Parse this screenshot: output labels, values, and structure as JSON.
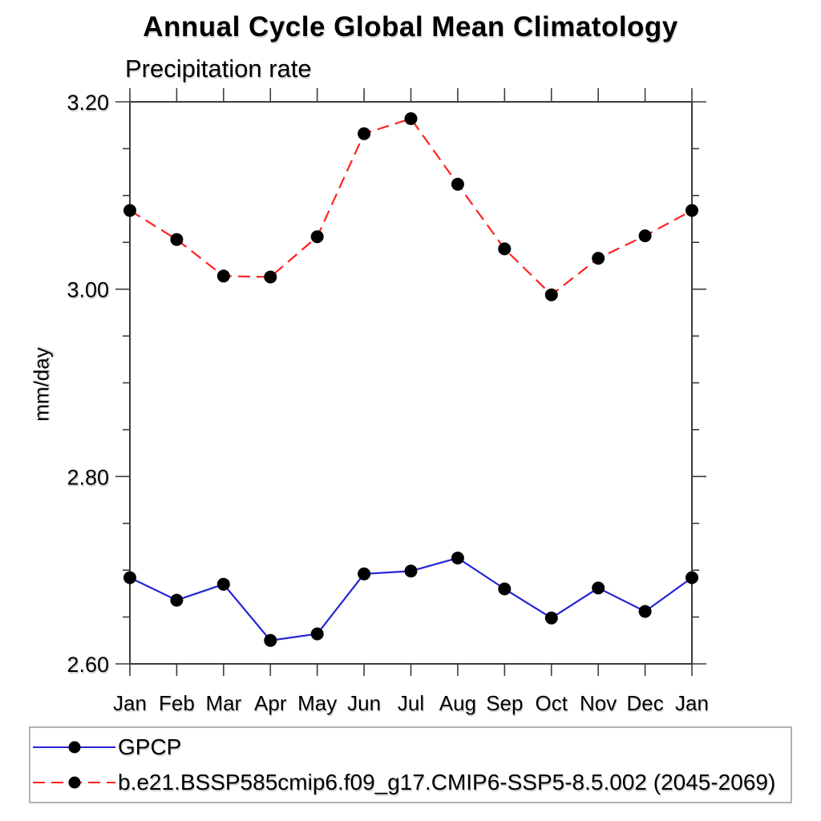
{
  "page": {
    "background": "#ffffff",
    "axis_color": "#3c3c3c",
    "legend_border_color": "#b2b2b2"
  },
  "chart_data": {
    "type": "line",
    "title": "Annual Cycle Global Mean Climatology",
    "subtitle": "Precipitation rate",
    "ylabel": "mm/day",
    "xlabel": "",
    "categories": [
      "Jan",
      "Feb",
      "Mar",
      "Apr",
      "May",
      "Jun",
      "Jul",
      "Aug",
      "Sep",
      "Oct",
      "Nov",
      "Dec",
      "Jan"
    ],
    "ylim": [
      2.6,
      3.2
    ],
    "ytick_major": 0.2,
    "ytick_minor": 0.05,
    "ytick_labels": [
      "2.60",
      "2.80",
      "3.00",
      "3.20"
    ],
    "grid": false,
    "legend_position": "bottom",
    "marker": "filled-circle",
    "marker_color": "#000000",
    "series": [
      {
        "name": "GPCP",
        "color": "#2424d6",
        "style": "solid",
        "values": [
          2.692,
          2.668,
          2.685,
          2.625,
          2.632,
          2.696,
          2.699,
          2.713,
          2.68,
          2.649,
          2.681,
          2.656,
          2.692
        ]
      },
      {
        "name": "b.e21.BSSP585cmip6.f09_g17.CMIP6-SSP5-8.5.002 (2045-2069)",
        "color": "#ff2222",
        "style": "dashed",
        "values": [
          3.084,
          3.053,
          3.014,
          3.013,
          3.056,
          3.166,
          3.182,
          3.112,
          3.043,
          2.994,
          3.033,
          3.057,
          3.084
        ]
      }
    ]
  }
}
